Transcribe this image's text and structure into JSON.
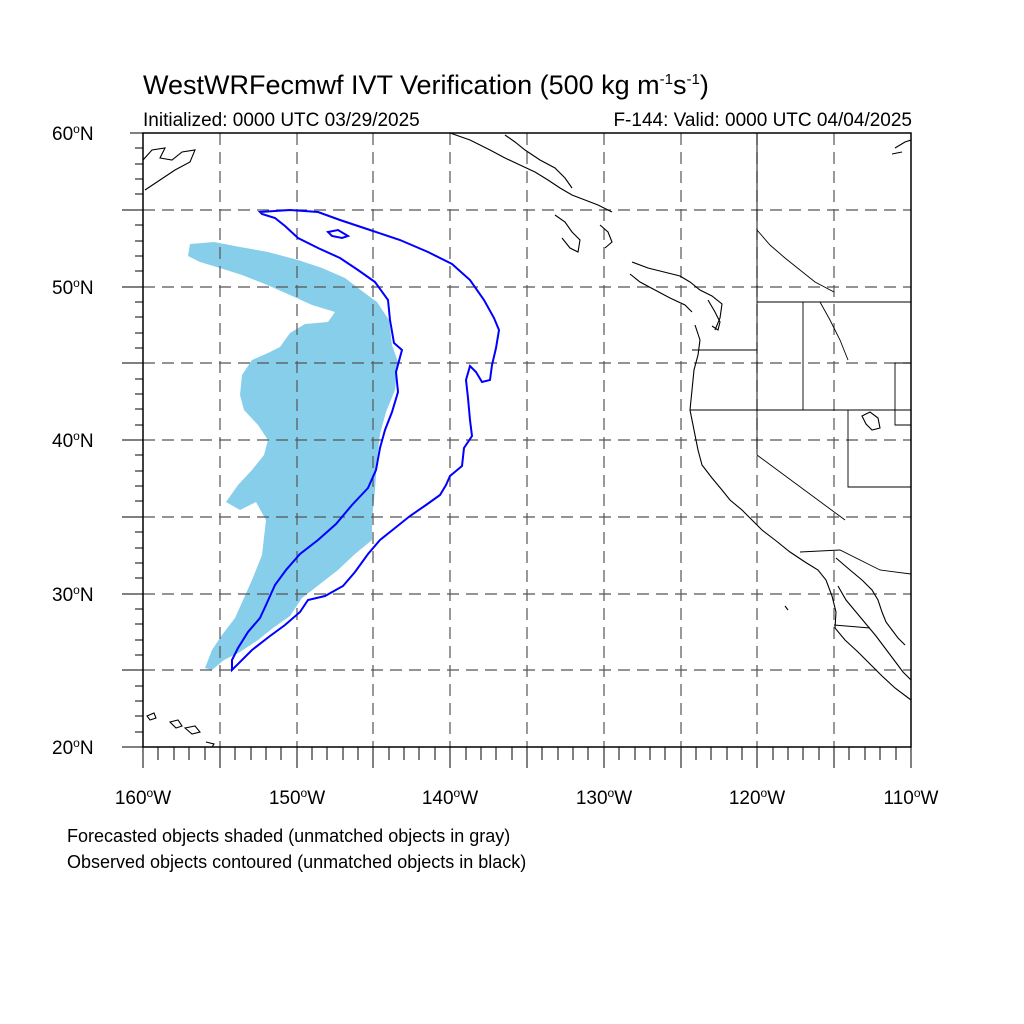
{
  "title": {
    "main": "WestWRFecmwf IVT Verification (500 kg m",
    "exp1": "-1",
    "mid": "s",
    "exp2": "-1",
    "close": ")"
  },
  "subtitle": {
    "left": "Initialized: 0000 UTC 03/29/2025",
    "right": "F-144: Valid: 0000 UTC 04/04/2025"
  },
  "axes": {
    "lat_labels": [
      {
        "num": "60",
        "suffix": "N"
      },
      {
        "num": "50",
        "suffix": "N"
      },
      {
        "num": "40",
        "suffix": "N"
      },
      {
        "num": "30",
        "suffix": "N"
      },
      {
        "num": "20",
        "suffix": "N"
      }
    ],
    "lon_labels": [
      {
        "num": "160",
        "suffix": "W"
      },
      {
        "num": "150",
        "suffix": "W"
      },
      {
        "num": "140",
        "suffix": "W"
      },
      {
        "num": "130",
        "suffix": "W"
      },
      {
        "num": "120",
        "suffix": "W"
      },
      {
        "num": "110",
        "suffix": "W"
      }
    ],
    "degree_symbol": "o"
  },
  "map": {
    "lat_range": [
      20,
      60
    ],
    "lon_range": [
      -160,
      -110
    ],
    "grid_spacing_deg": 5,
    "grid": true,
    "colors": {
      "forecast_fill": "#87ceeb",
      "observed_contour": "#0000ff",
      "coastline": "#000000",
      "gridline": "#555555"
    }
  },
  "footer": {
    "line1": "Forecasted objects shaded (unmatched objects in gray)",
    "line2": "Observed objects contoured (unmatched objects in black)"
  }
}
